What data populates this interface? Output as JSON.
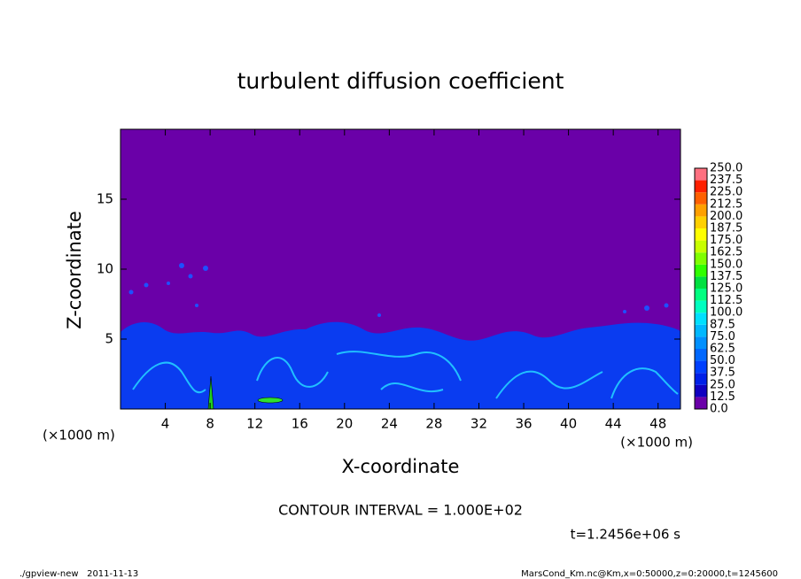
{
  "chart_data": {
    "type": "contour",
    "title": "turbulent diffusion coefficient",
    "xlabel": "X-coordinate",
    "ylabel": "Z-coordinate",
    "x_unit": "(×1000 m)",
    "xlim": [
      0,
      50
    ],
    "ylim": [
      0,
      20
    ],
    "xticks": [
      4,
      8,
      12,
      16,
      20,
      24,
      28,
      32,
      36,
      40,
      44,
      48
    ],
    "yticks": [
      5,
      10,
      15
    ],
    "colorbar": {
      "levels": [
        {
          "value": 0,
          "label": "0.0"
        },
        {
          "value": 12.5,
          "label": "12.5"
        },
        {
          "value": 25,
          "label": "25.0"
        },
        {
          "value": 37.5,
          "label": "37.5"
        },
        {
          "value": 50,
          "label": "50.0"
        },
        {
          "value": 62.5,
          "label": "62.5"
        },
        {
          "value": 75,
          "label": "75.0"
        },
        {
          "value": 87.5,
          "label": "87.5"
        },
        {
          "value": 100,
          "label": "100.0"
        },
        {
          "value": 112.5,
          "label": "112.5"
        },
        {
          "value": 125,
          "label": "125.0"
        },
        {
          "value": 137.5,
          "label": "137.5"
        },
        {
          "value": 150,
          "label": "150.0"
        },
        {
          "value": 162.5,
          "label": "162.5"
        },
        {
          "value": 175,
          "label": "175.0"
        },
        {
          "value": 187.5,
          "label": "187.5"
        },
        {
          "value": 200,
          "label": "200.0"
        },
        {
          "value": 212.5,
          "label": "212.5"
        },
        {
          "value": 225,
          "label": "225.0"
        },
        {
          "value": 237.5,
          "label": "237.5"
        },
        {
          "value": 250,
          "label": "250.0"
        }
      ],
      "colors": [
        "#6a00a8",
        "#1000c0",
        "#0020e8",
        "#0040ff",
        "#0068ff",
        "#0090ff",
        "#00b8ff",
        "#00e0ff",
        "#00ffc0",
        "#00ff80",
        "#00e040",
        "#30ff00",
        "#80ff00",
        "#c8ff00",
        "#ffff00",
        "#ffd000",
        "#ffa000",
        "#ff6000",
        "#ff2000",
        "#ff7080"
      ]
    },
    "contour_interval": "CONTOUR INTERVAL = 1.000E+02",
    "time_label": "t=1.2456e+06 s",
    "footer_left": "./gpview-new   2011-11-13",
    "footer_right": "MarsCond_Km.nc@Km,x=0:50000,z=0:20000,t=1245600"
  }
}
